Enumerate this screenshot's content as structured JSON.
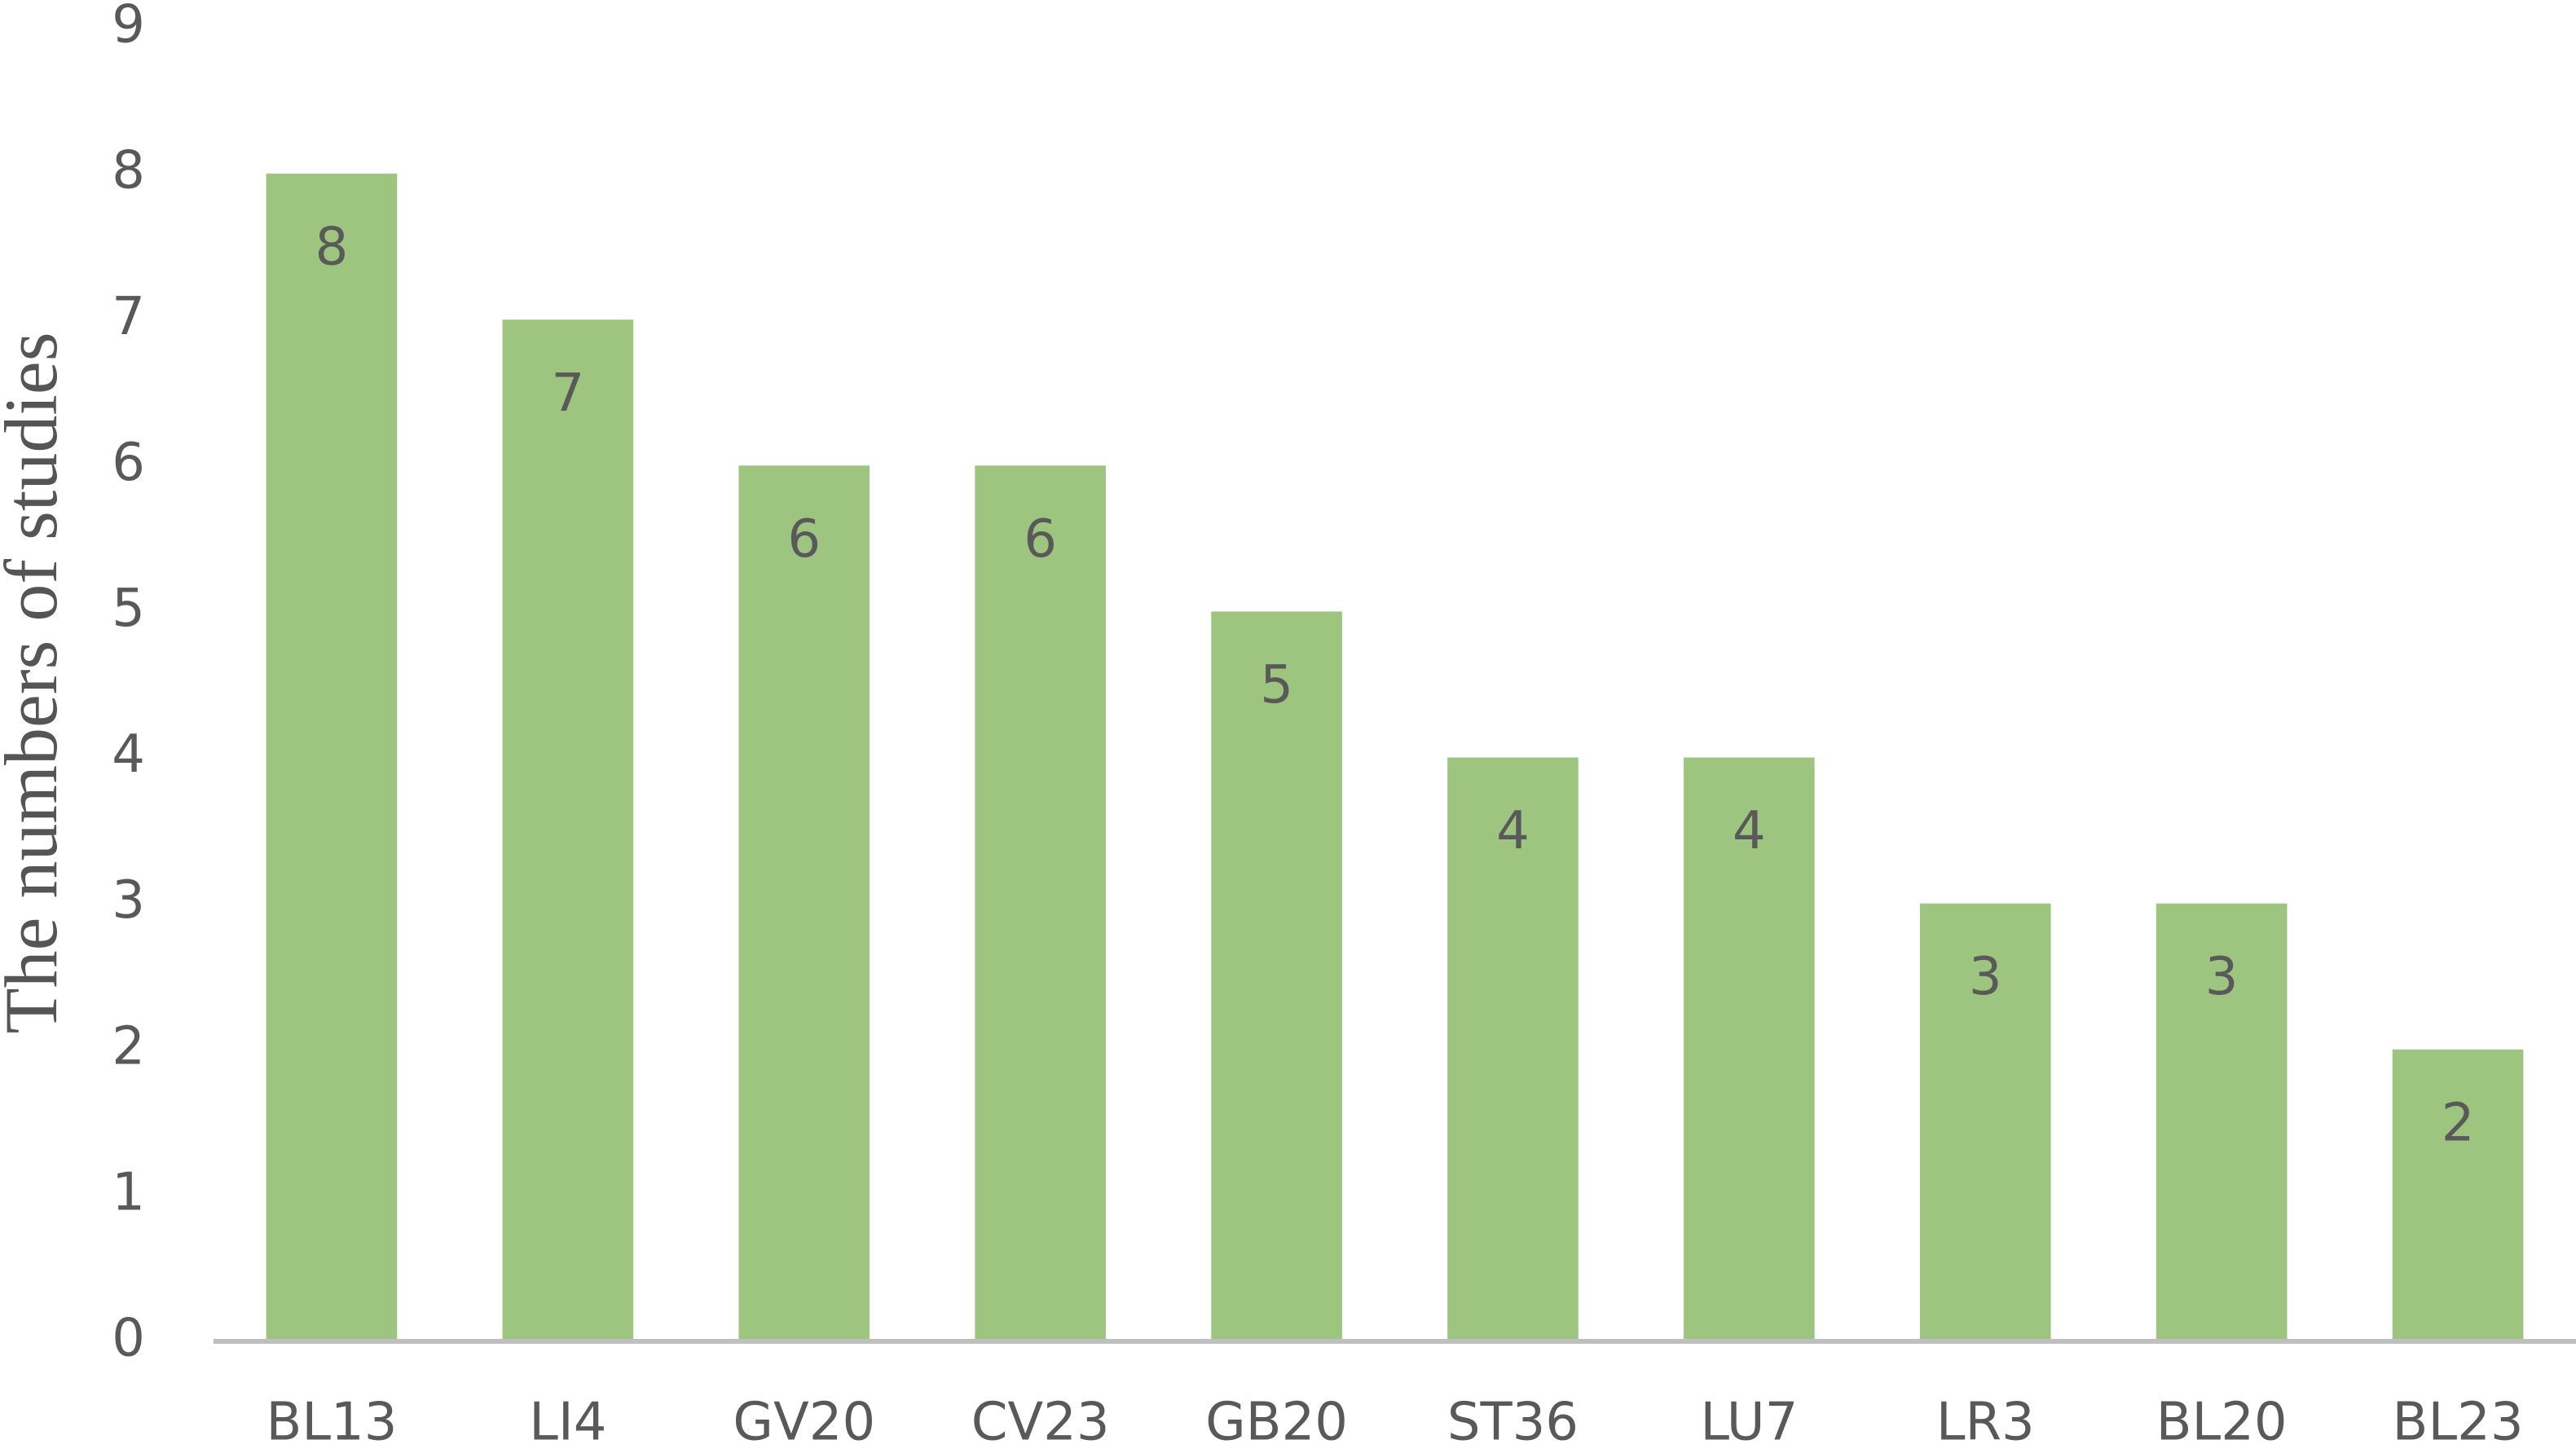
{
  "chart_data": {
    "type": "bar",
    "y_label": "The numbers of studies",
    "categories": [
      "BL13",
      "LI4",
      "GV20",
      "CV23",
      "GB20",
      "ST36",
      "LU7",
      "LR3",
      "BL20",
      "BL23"
    ],
    "values": [
      8,
      7,
      6,
      6,
      5,
      4,
      4,
      3,
      3,
      2
    ],
    "color": "#9dc57f",
    "ylim": [
      0,
      9
    ],
    "yticks": [
      0,
      1,
      2,
      3,
      4,
      5,
      6,
      7,
      8,
      9
    ],
    "grid": false,
    "data_labels": true
  }
}
